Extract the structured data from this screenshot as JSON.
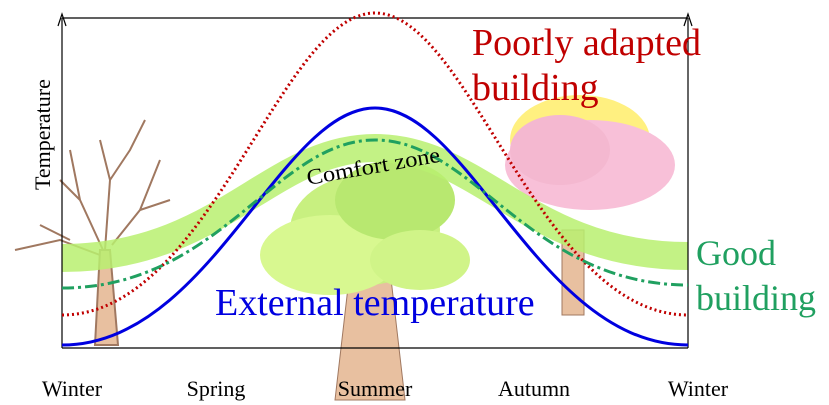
{
  "y_axis_label": "Temperature",
  "comfort_zone_label": "Comfort zone",
  "poorly_adapted_label": [
    "Poorly adapted",
    "building"
  ],
  "good_building_label": [
    "Good",
    "building"
  ],
  "external_temperature_label": "External temperature",
  "seasons": [
    "Winter",
    "Spring",
    "Summer",
    "Autumn",
    "Winter"
  ]
}
